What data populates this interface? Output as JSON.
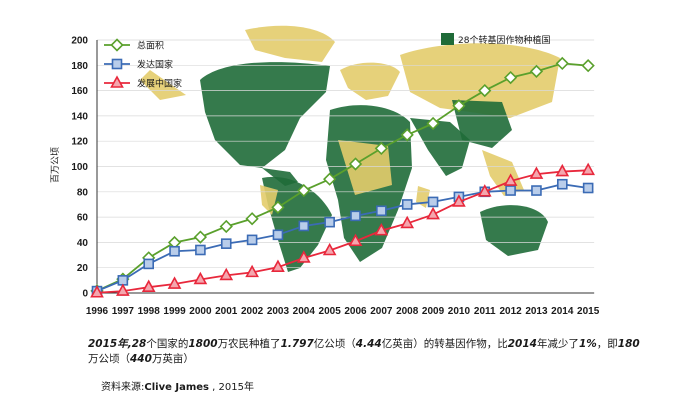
{
  "chart_data": {
    "type": "line",
    "ylabel": "百万公顷",
    "ylim": [
      0,
      200
    ],
    "yticks": [
      0,
      20,
      40,
      60,
      80,
      100,
      120,
      140,
      160,
      180,
      200
    ],
    "x": [
      "1996",
      "1997",
      "1998",
      "1999",
      "2000",
      "2001",
      "2002",
      "2003",
      "2004",
      "2005",
      "2006",
      "2007",
      "2008",
      "2009",
      "2010",
      "2011",
      "2012",
      "2013",
      "2014",
      "2015"
    ],
    "series": [
      {
        "name": "总面积",
        "color": "#5aa02c",
        "marker": "diamond",
        "values": [
          1.7,
          11,
          27.8,
          39.9,
          44.2,
          52.6,
          58.7,
          67.7,
          81,
          90,
          102,
          114.3,
          125,
          134,
          148,
          160,
          170.3,
          175.2,
          181.5,
          179.7
        ]
      },
      {
        "name": "发达国家",
        "color": "#3b6bb5",
        "marker": "square",
        "values": [
          1.5,
          10,
          23,
          33,
          34,
          39,
          42,
          46,
          53,
          56,
          61,
          65,
          70,
          72,
          76,
          80,
          81,
          81,
          86,
          83
        ]
      },
      {
        "name": "发展中国家",
        "color": "#e8283c",
        "marker": "triangle",
        "values": [
          0.2,
          1.5,
          4.6,
          7.1,
          10.7,
          13.9,
          16.3,
          20.4,
          27.7,
          33.6,
          40.9,
          49.3,
          55,
          62,
          72,
          80,
          88.5,
          94,
          96,
          97
        ]
      }
    ],
    "map_legend": "28个转基因作物种植国"
  },
  "colors": {
    "map_green": "#1f6b38",
    "map_tan": "#e3cc6c",
    "grid": "#d9d9d9"
  },
  "caption": {
    "p1": "2015年,28",
    "p2": "个国家的",
    "p3": "1800",
    "p4": "万农民种植了",
    "p5": "1.797",
    "p6": "亿公顷（",
    "p7": "4.44",
    "p8": "亿英亩）的转基因作物，比",
    "p9": "2014",
    "p10": "年减少了",
    "p11": "1%",
    "p12": "，即",
    "p13": "180",
    "p14": "万公顷（",
    "p15": "440",
    "p16": "万英亩）"
  },
  "source": {
    "prefix": "资料来源:",
    "name": "Clive James",
    "suffix": " , 2015年"
  }
}
